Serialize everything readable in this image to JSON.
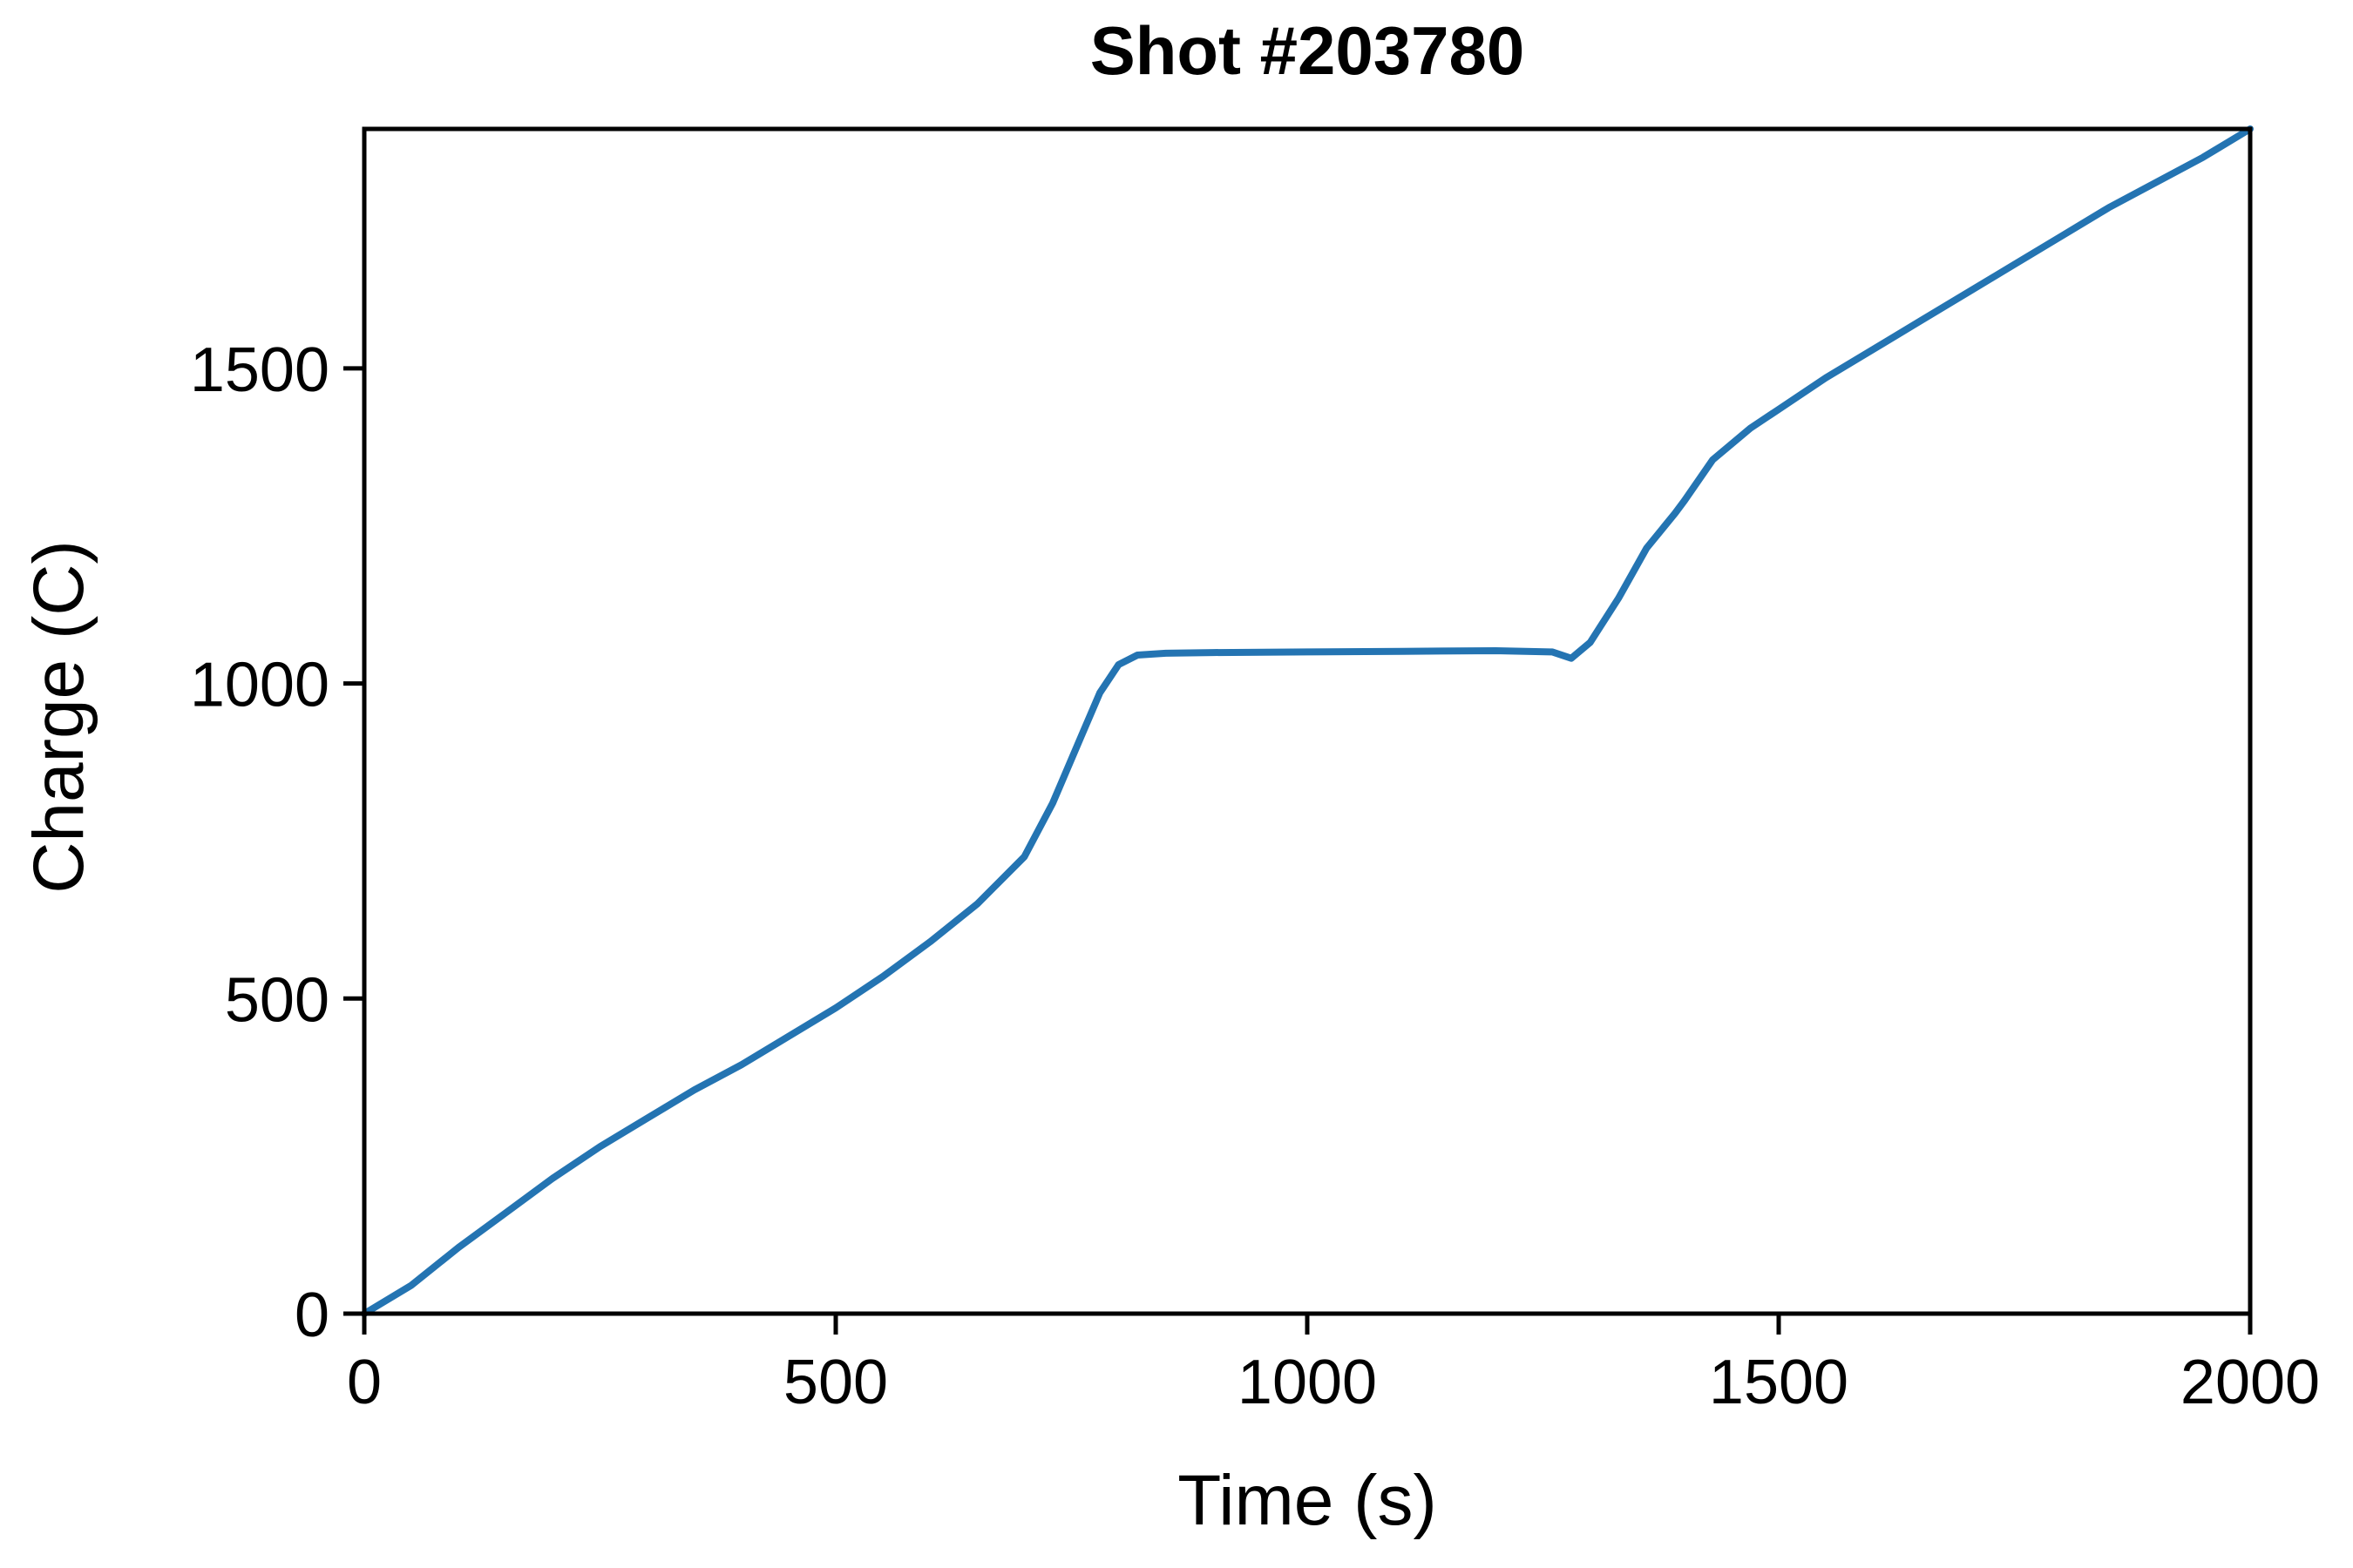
{
  "chart_data": {
    "type": "line",
    "title": "Shot #203780",
    "xlabel": "Time (s)",
    "ylabel": "Charge (C)",
    "xlim": [
      0,
      2000
    ],
    "ylim": [
      0,
      1880
    ],
    "xticks": [
      0,
      500,
      1000,
      1500,
      2000
    ],
    "yticks": [
      0,
      500,
      1000,
      1500
    ],
    "grid": false,
    "color": "#2474b2",
    "series": [
      {
        "x": [
          0,
          50,
          100,
          150,
          200,
          250,
          300,
          350,
          400,
          450,
          500,
          550,
          600,
          650,
          700,
          730,
          760,
          780,
          800,
          820,
          850,
          900,
          1000,
          1100,
          1200,
          1260,
          1280,
          1300,
          1330,
          1360,
          1390,
          1400,
          1430,
          1470,
          1500,
          1550,
          1600,
          1650,
          1700,
          1750,
          1800,
          1850,
          1900,
          1950,
          2000
        ],
        "y": [
          0,
          45,
          105,
          160,
          215,
          265,
          310,
          355,
          395,
          440,
          485,
          535,
          590,
          650,
          725,
          810,
          915,
          985,
          1030,
          1045,
          1048,
          1049,
          1050,
          1051,
          1052,
          1050,
          1040,
          1065,
          1135,
          1215,
          1270,
          1290,
          1355,
          1405,
          1435,
          1485,
          1530,
          1575,
          1620,
          1665,
          1710,
          1755,
          1795,
          1835,
          1880
        ]
      }
    ]
  }
}
